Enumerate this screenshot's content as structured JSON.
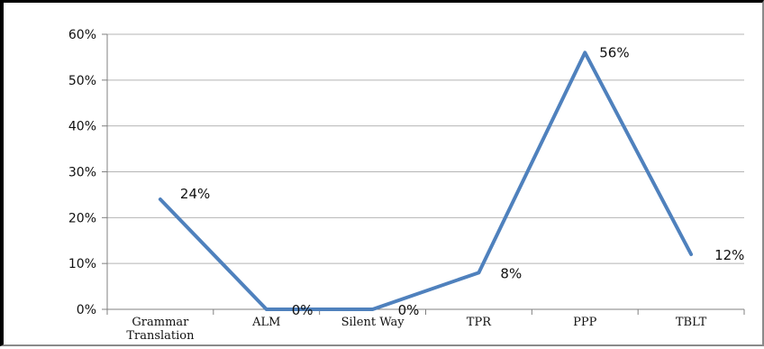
{
  "chart_data": {
    "type": "line",
    "categories": [
      "Grammar Translation",
      "ALM",
      "Silent Way",
      "TPR",
      "PPP",
      "TBLT"
    ],
    "category_lines": [
      [
        "Grammar",
        "Translation"
      ],
      [
        "ALM"
      ],
      [
        "Silent Way"
      ],
      [
        "TPR"
      ],
      [
        "PPP"
      ],
      [
        "TBLT"
      ]
    ],
    "series": [
      {
        "values": [
          24,
          0,
          0,
          8,
          56,
          12
        ],
        "color": "#4f81bd",
        "data_labels": [
          "24%",
          "0%",
          "0%",
          "8%",
          "56%",
          "12%"
        ]
      }
    ],
    "y_ticks": [
      "0%",
      "10%",
      "20%",
      "30%",
      "40%",
      "50%",
      "60%"
    ],
    "y_tick_values": [
      0,
      10,
      20,
      30,
      40,
      50,
      60
    ],
    "ylim": [
      0,
      60
    ],
    "grid": true,
    "legend": "none",
    "title": "",
    "xlabel": "",
    "ylabel": ""
  }
}
